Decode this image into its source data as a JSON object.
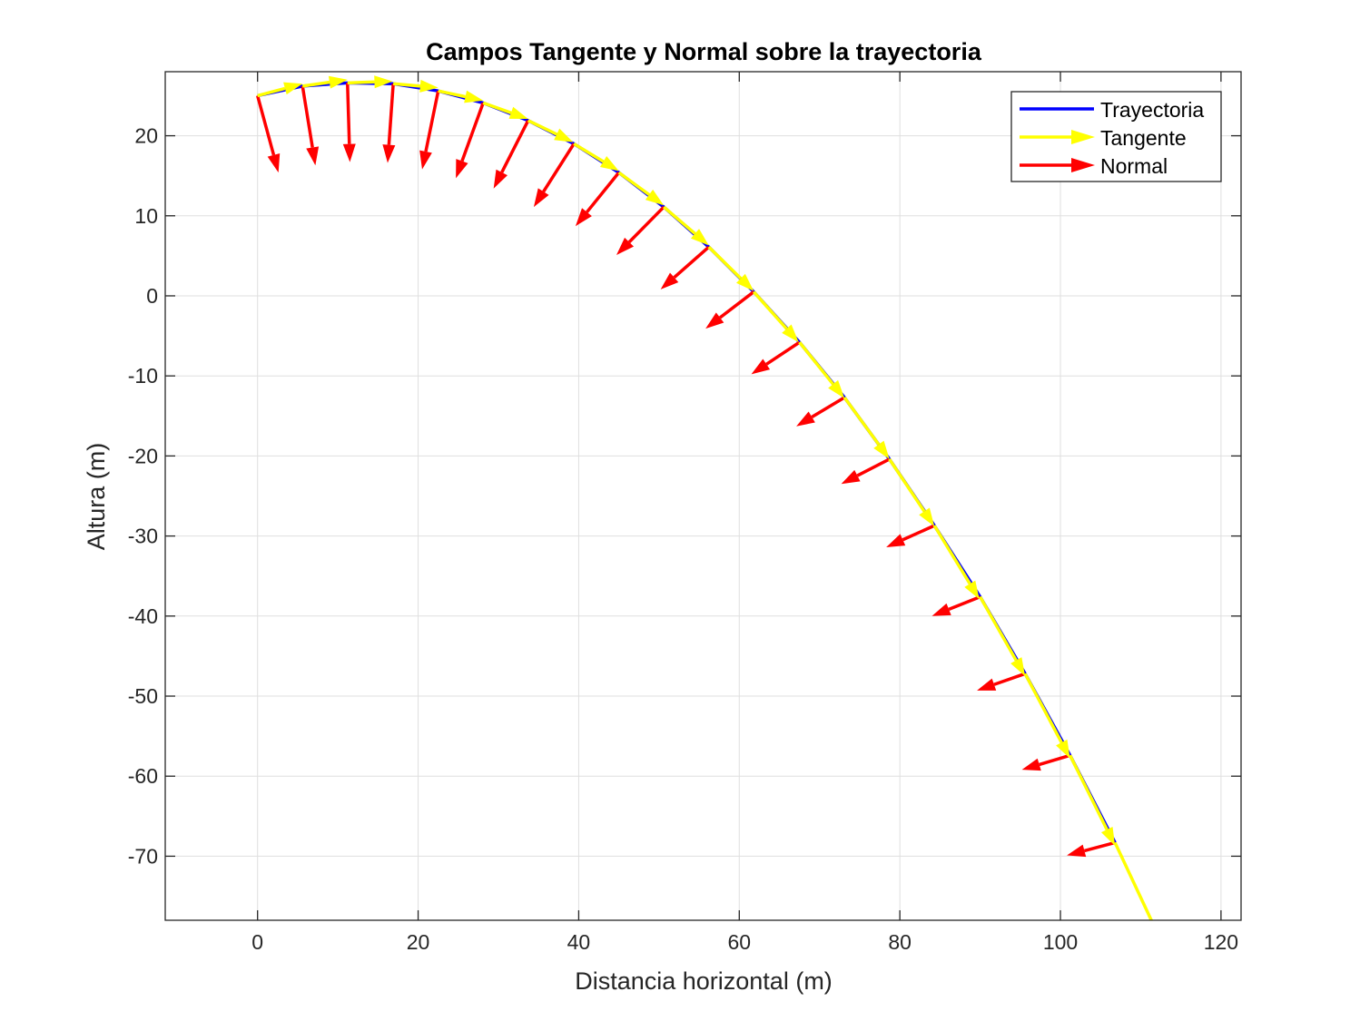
{
  "chart_data": {
    "type": "quiver",
    "title": "Campos Tangente y Normal sobre la trayectoria",
    "xlabel": "Distancia horizontal (m)",
    "ylabel": "Altura (m)",
    "xlim": [
      -11.5,
      122.5
    ],
    "ylim": [
      -78,
      28
    ],
    "xticks": [
      0,
      20,
      40,
      60,
      80,
      100,
      120
    ],
    "yticks": [
      20,
      10,
      0,
      -10,
      -20,
      -30,
      -40,
      -50,
      -60,
      -70
    ],
    "xtick_labels": [
      "0",
      "20",
      "40",
      "60",
      "80",
      "100",
      "120"
    ],
    "ytick_labels": [
      "20",
      "10",
      "0",
      "-10",
      "-20",
      "-30",
      "-40",
      "-50",
      "-60",
      "-70"
    ],
    "grid": true,
    "legend_position": "top-right",
    "legend": [
      "Trayectoria",
      "Tangente",
      "Normal"
    ],
    "colors": {
      "trajectory": "#0000ff",
      "tangent": "#ffff00",
      "normal": "#ff0000",
      "grid": "#dfdfdf",
      "axes": "#262626"
    },
    "series": [
      {
        "name": "Trayectoria",
        "type": "line",
        "x": [
          0,
          5.6,
          11.2,
          16.9,
          22.5,
          28.1,
          33.7,
          39.4,
          45.0,
          50.6,
          56.2,
          61.8,
          67.5,
          73.1,
          78.7,
          84.3,
          90.0,
          95.6,
          101.2,
          106.8
        ],
        "y": [
          25.0,
          26.2,
          26.6,
          26.5,
          25.6,
          24.1,
          21.9,
          19.0,
          15.4,
          11.1,
          6.1,
          0.5,
          -5.8,
          -12.7,
          -20.4,
          -28.7,
          -37.6,
          -47.2,
          -57.4,
          -68.3
        ]
      },
      {
        "name": "Tangente",
        "type": "quiver",
        "u": [
          5.6,
          5.6,
          5.6,
          5.6,
          5.6,
          5.6,
          5.6,
          5.6,
          5.6,
          5.6,
          5.6,
          5.6,
          5.6,
          5.6,
          5.6,
          5.6,
          5.6,
          5.6,
          5.6,
          5.6
        ],
        "v": [
          1.5,
          0.8,
          0.2,
          -0.5,
          -1.2,
          -2.0,
          -2.7,
          -3.4,
          -4.1,
          -4.8,
          -5.5,
          -6.3,
          -7.0,
          -7.7,
          -8.4,
          -9.2,
          -9.9,
          -10.6,
          -11.3,
          -12.0
        ]
      },
      {
        "name": "Normal",
        "type": "quiver",
        "u": [
          2.6,
          1.6,
          0.3,
          -0.7,
          -2.0,
          -3.4,
          -4.3,
          -5.0,
          -5.4,
          -5.9,
          -6.0,
          -6.0,
          -6.0,
          -6.0,
          -6.0,
          -6.0,
          -6.0,
          -6.0,
          -6.0,
          -6.0
        ],
        "v": [
          -9.6,
          -9.9,
          -9.9,
          -9.9,
          -9.8,
          -9.4,
          -8.5,
          -7.9,
          -6.7,
          -6.0,
          -5.3,
          -4.6,
          -4.0,
          -3.6,
          -3.1,
          -2.7,
          -2.4,
          -2.1,
          -1.8,
          -1.6
        ]
      }
    ]
  }
}
